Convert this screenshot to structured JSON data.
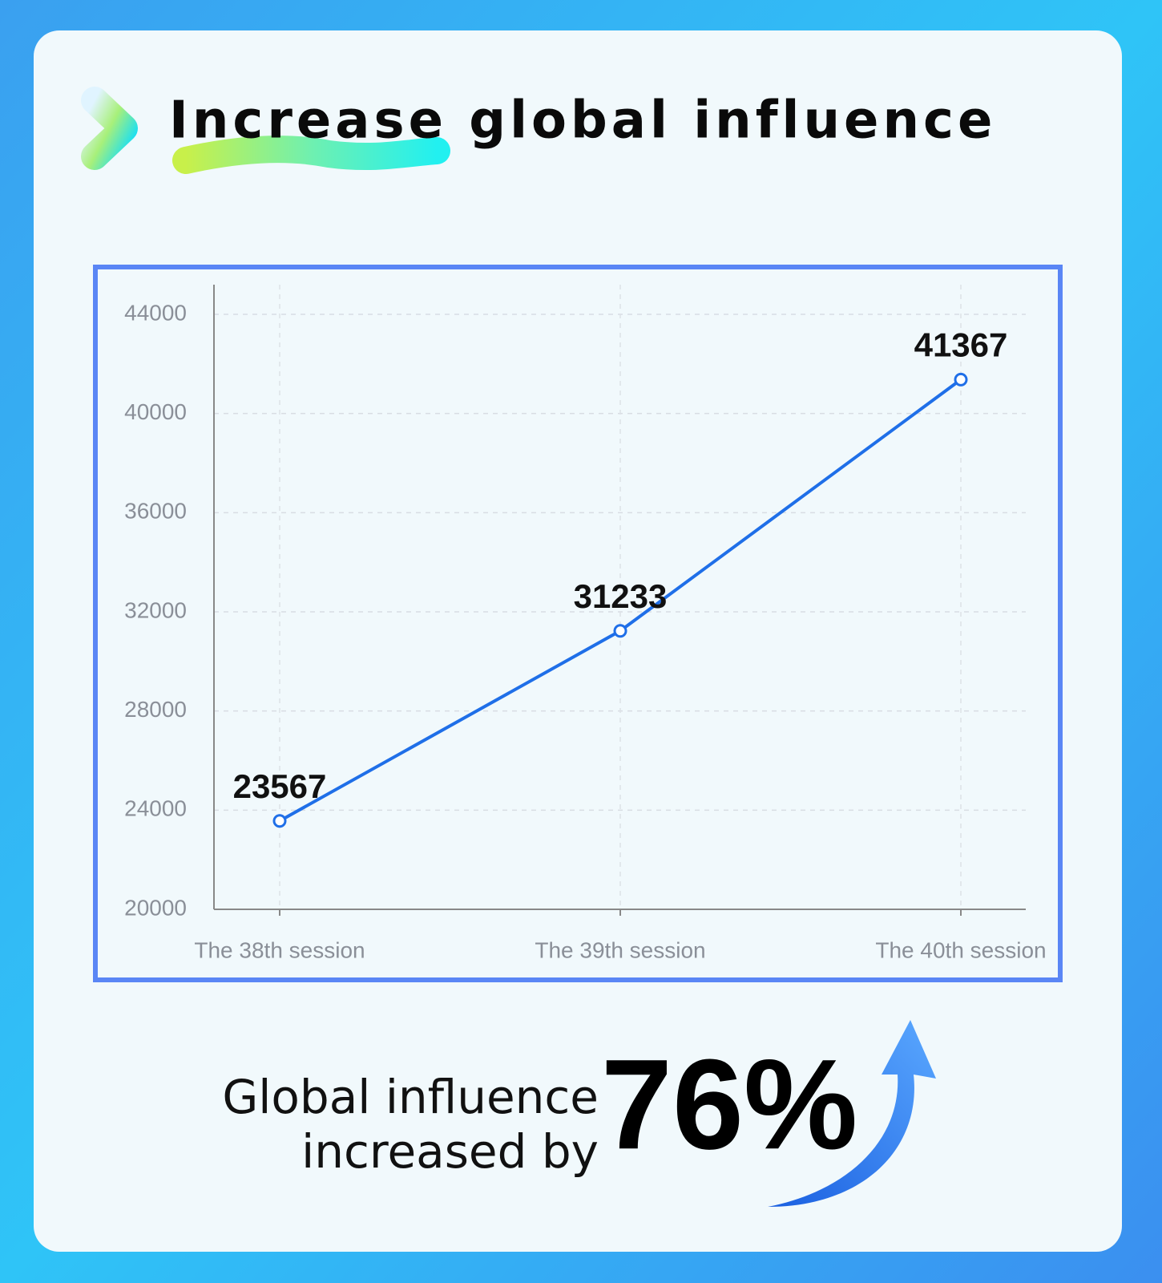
{
  "chart_data": {
    "type": "line",
    "title": "Increase global influence",
    "categories": [
      "The 38th session",
      "The 39th session",
      "The 40th session"
    ],
    "values": [
      23567,
      31233,
      41367
    ],
    "color": "#1f6fe8",
    "ylim": [
      20000,
      44000
    ],
    "yticks": [
      20000,
      24000,
      28000,
      32000,
      36000,
      40000,
      44000
    ],
    "grid": true
  },
  "footer": {
    "line1": "Global influence",
    "line2": "increased by",
    "highlight": "76%"
  }
}
